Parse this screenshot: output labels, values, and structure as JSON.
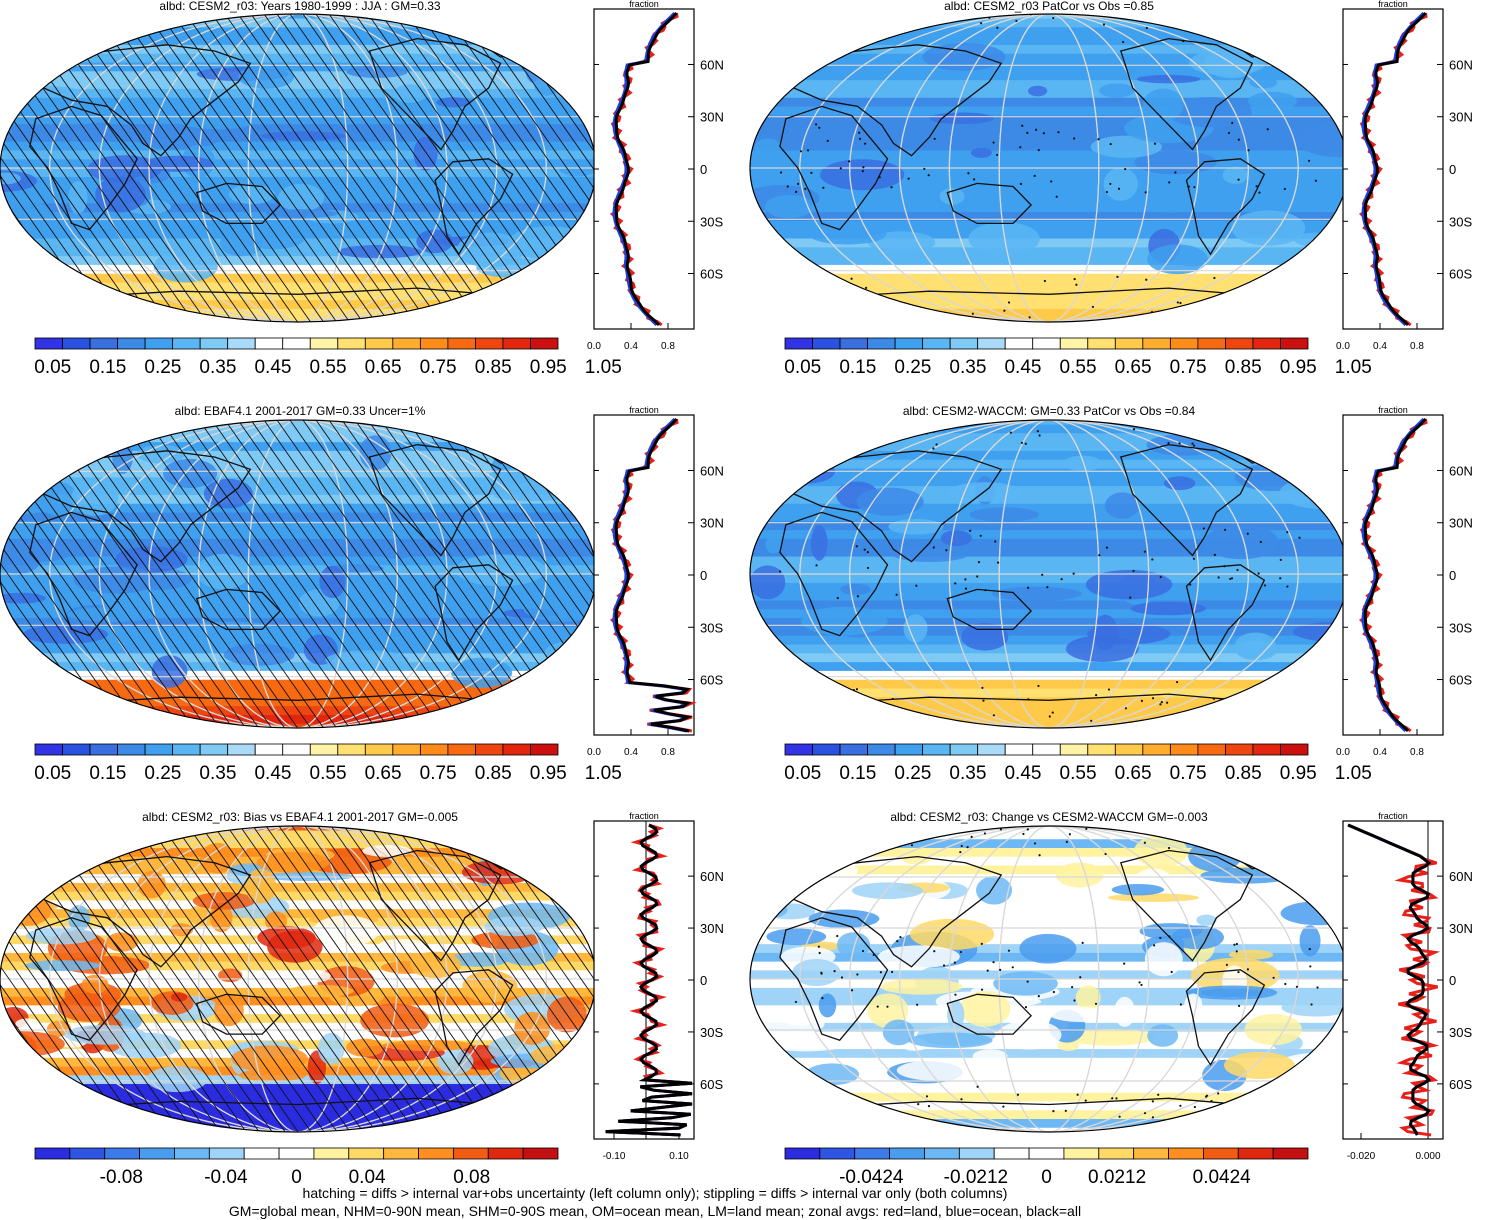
{
  "panels": [
    {
      "id": "p1",
      "title": "albd: CESM2_r03: Years 1980-1999 : JJA : GM=0.33",
      "zonal_header": "fraction",
      "zonal_x_ticks": [
        "0.0",
        "0.4",
        "0.8"
      ],
      "lat_ticks": [
        "60N",
        "30N",
        "0",
        "30S",
        "60S"
      ],
      "colorbar_labels": [
        "0.05",
        "0.15",
        "0.25",
        "0.35",
        "0.45",
        "0.55",
        "0.65",
        "0.75",
        "0.85",
        "0.95",
        "1.05"
      ],
      "overlay": "hatching"
    },
    {
      "id": "p2",
      "title": "albd: CESM2_r03 PatCor vs Obs =0.85",
      "zonal_header": "fraction",
      "zonal_x_ticks": [
        "0.0",
        "0.4",
        "0.8"
      ],
      "lat_ticks": [
        "60N",
        "30N",
        "0",
        "30S",
        "60S"
      ],
      "colorbar_labels": [
        "0.05",
        "0.15",
        "0.25",
        "0.35",
        "0.45",
        "0.55",
        "0.65",
        "0.75",
        "0.85",
        "0.95",
        "1.05"
      ],
      "overlay": "stippling"
    },
    {
      "id": "p3",
      "title": "albd: EBAF4.1 2001-2017 GM=0.33 Uncer=1%",
      "zonal_header": "fraction",
      "zonal_x_ticks": [
        "0.0",
        "0.4",
        "0.8"
      ],
      "lat_ticks": [
        "60N",
        "30N",
        "0",
        "30S",
        "60S"
      ],
      "colorbar_labels": [
        "0.05",
        "0.15",
        "0.25",
        "0.35",
        "0.45",
        "0.55",
        "0.65",
        "0.75",
        "0.85",
        "0.95",
        "1.05"
      ],
      "overlay": "hatching"
    },
    {
      "id": "p4",
      "title": "albd: CESM2-WACCM: GM=0.33 PatCor vs Obs =0.84",
      "zonal_header": "fraction",
      "zonal_x_ticks": [
        "0.0",
        "0.4",
        "0.8"
      ],
      "lat_ticks": [
        "60N",
        "30N",
        "0",
        "30S",
        "60S"
      ],
      "colorbar_labels": [
        "0.05",
        "0.15",
        "0.25",
        "0.35",
        "0.45",
        "0.55",
        "0.65",
        "0.75",
        "0.85",
        "0.95",
        "1.05"
      ],
      "overlay": "stippling"
    },
    {
      "id": "p5",
      "title": "albd: CESM2_r03: Bias vs EBAF4.1 2001-2017 GM=-0.005",
      "zonal_header": "fraction",
      "zonal_x_ticks": [
        "-0.10",
        "0.10"
      ],
      "lat_ticks": [
        "60N",
        "30N",
        "0",
        "30S",
        "60S"
      ],
      "colorbar_labels": [
        "-0.08",
        "-0.04",
        "0",
        "0.04",
        "0.08"
      ],
      "overlay": "hatching"
    },
    {
      "id": "p6",
      "title": "albd: CESM2_r03: Change vs CESM2-WACCM GM=-0.003",
      "zonal_header": "fraction",
      "zonal_x_ticks": [
        "-0.020",
        "0.000"
      ],
      "lat_ticks": [
        "60N",
        "30N",
        "0",
        "30S",
        "60S"
      ],
      "colorbar_labels": [
        "-0.0424",
        "-0.0212",
        "0",
        "0.0212",
        "0.0424"
      ],
      "overlay": "stippling"
    }
  ],
  "colors": {
    "seq_palette": [
      "#3333e6",
      "#2a52e0",
      "#3a6fe0",
      "#3d8ae6",
      "#3fa0ef",
      "#5ab6f3",
      "#7fc9f5",
      "#a9daf7",
      "#ffffff",
      "#ffffff",
      "#fff3a8",
      "#ffe070",
      "#ffc94a",
      "#ffad2e",
      "#ff8c1a",
      "#f76a12",
      "#ee4610",
      "#e3260e",
      "#cc1010"
    ],
    "div_palette": [
      "#2b2be0",
      "#2f55e5",
      "#3b7ae8",
      "#4a9cee",
      "#6db8f4",
      "#9fd3f7",
      "#ffffff",
      "#ffffff",
      "#fff3a0",
      "#ffd966",
      "#ffb83d",
      "#ff8f1f",
      "#f25c12",
      "#e0280f",
      "#c41010"
    ],
    "zonal_land": "#e8201a",
    "zonal_ocean": "#1f3fe0",
    "zonal_all": "#000000"
  },
  "footer": {
    "line1": "hatching = diffs > internal var+obs uncertainty (left column only); stippling = diffs > internal var only (both columns)",
    "line2": "GM=global mean, NHM=0-90N mean, SHM=0-90S mean, OM=ocean mean, LM=land mean; zonal avgs: red=land, blue=ocean, black=all"
  }
}
